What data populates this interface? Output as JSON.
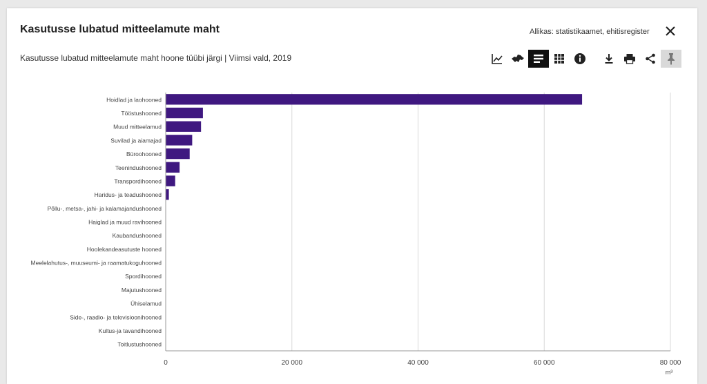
{
  "header": {
    "title": "Kasutusse lubatud mitteelamute maht",
    "source": "Allikas: statistikaamet, ehitisregister",
    "subtitle": "Kasutusse lubatud mitteelamute maht hoone tüübi järgi | Viimsi vald, 2019"
  },
  "toolbar": {
    "icons": [
      "line-chart-icon",
      "map-icon",
      "bar-chart-icon",
      "table-icon",
      "info-icon",
      "download-icon",
      "print-icon",
      "share-icon",
      "pin-icon"
    ],
    "active": "bar-chart-icon"
  },
  "colors": {
    "bar": "#3f1880",
    "grid": "#d8d8d8",
    "axis": "#999999"
  },
  "chart_data": {
    "type": "bar",
    "orientation": "horizontal",
    "categories": [
      "Hoidlad ja laohooned",
      "Tööstushooned",
      "Muud mitteelamud",
      "Suvilad ja aiamajad",
      "Büroohooned",
      "Teenindushooned",
      "Transpordihooned",
      "Haridus- ja teadushooned",
      "Põllu-, metsa-, jahi- ja kalamajandushooned",
      "Haiglad ja muud ravihooned",
      "Kaubandushooned",
      "Hoolekandeasutuste hooned",
      "Meelelahutus-, muuseumi- ja raamatukoguhooned",
      "Spordihooned",
      "Majutushooned",
      "Ühiselamud",
      "Side-, raadio- ja televisioonihooned",
      "Kultus-ja tavandihooned",
      "Toitlustushooned"
    ],
    "values": [
      66000,
      5900,
      5600,
      4200,
      3800,
      2200,
      1500,
      500,
      0,
      0,
      0,
      0,
      0,
      0,
      0,
      0,
      0,
      0,
      0
    ],
    "xlim": [
      0,
      80000
    ],
    "xticks": [
      0,
      20000,
      40000,
      60000,
      80000
    ],
    "xtick_labels": [
      "0",
      "20 000",
      "40 000",
      "60 000",
      "80 000"
    ],
    "unit": "m³",
    "grid": true
  }
}
